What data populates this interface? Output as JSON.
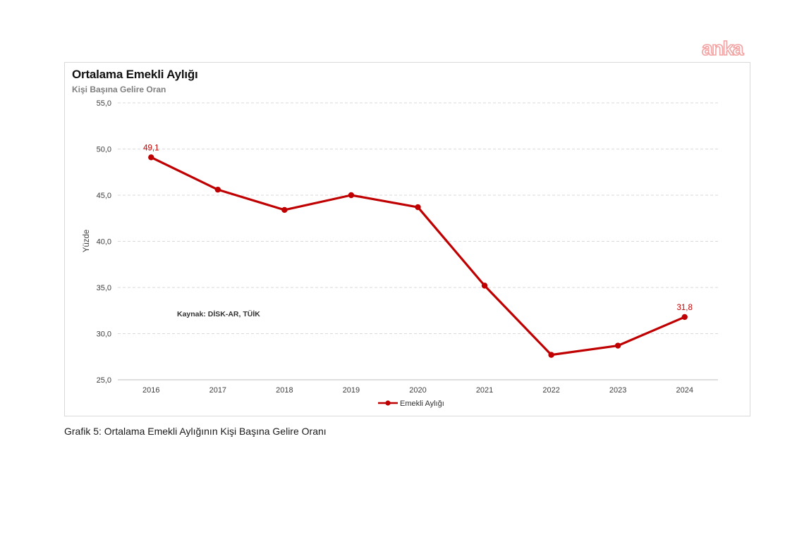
{
  "logo_text": "anka",
  "chart": {
    "title": "Ortalama Emekli Aylığı",
    "subtitle": "Kişi Başına Gelire Oran"
  },
  "chart_data": {
    "type": "line",
    "title": "Ortalama Emekli Aylığı",
    "subtitle": "Kişi Başına Gelire Oran",
    "categories": [
      "2016",
      "2017",
      "2018",
      "2019",
      "2020",
      "2021",
      "2022",
      "2023",
      "2024"
    ],
    "series": [
      {
        "name": "Emekli Aylığı",
        "values": [
          49.1,
          45.6,
          43.4,
          45.0,
          43.7,
          35.2,
          27.7,
          28.7,
          31.8
        ]
      }
    ],
    "xlabel": "",
    "ylabel": "Yüzde",
    "ylim": [
      25,
      55
    ],
    "yticks": [
      {
        "value": 55,
        "label": "55,0"
      },
      {
        "value": 50,
        "label": "50,0"
      },
      {
        "value": 45,
        "label": "45,0"
      },
      {
        "value": 40,
        "label": "40,0"
      },
      {
        "value": 35,
        "label": "35,0"
      },
      {
        "value": 30,
        "label": "30,0"
      },
      {
        "value": 25,
        "label": "25,0"
      }
    ],
    "grid": "horizontal-dashed",
    "legend_position": "bottom",
    "legend_label": "Emekli Aylığı",
    "point_labels": {
      "0": "49,1",
      "8": "31,8"
    },
    "source_note": "Kaynak: DİSK-AR, TÜİK"
  },
  "caption": "Grafik 5: Ortalama Emekli Aylığının Kişi Başına Gelire Oranı",
  "colors": {
    "line": "#C00000",
    "data_label": "#C00000",
    "grid": "#D9D9D9",
    "axis": "#BFBFBF",
    "tick_text": "#404040",
    "legend_text": "#333333",
    "source_text": "#333333",
    "ylabel_text": "#404040",
    "logo_outline": "#F2A3A3"
  }
}
